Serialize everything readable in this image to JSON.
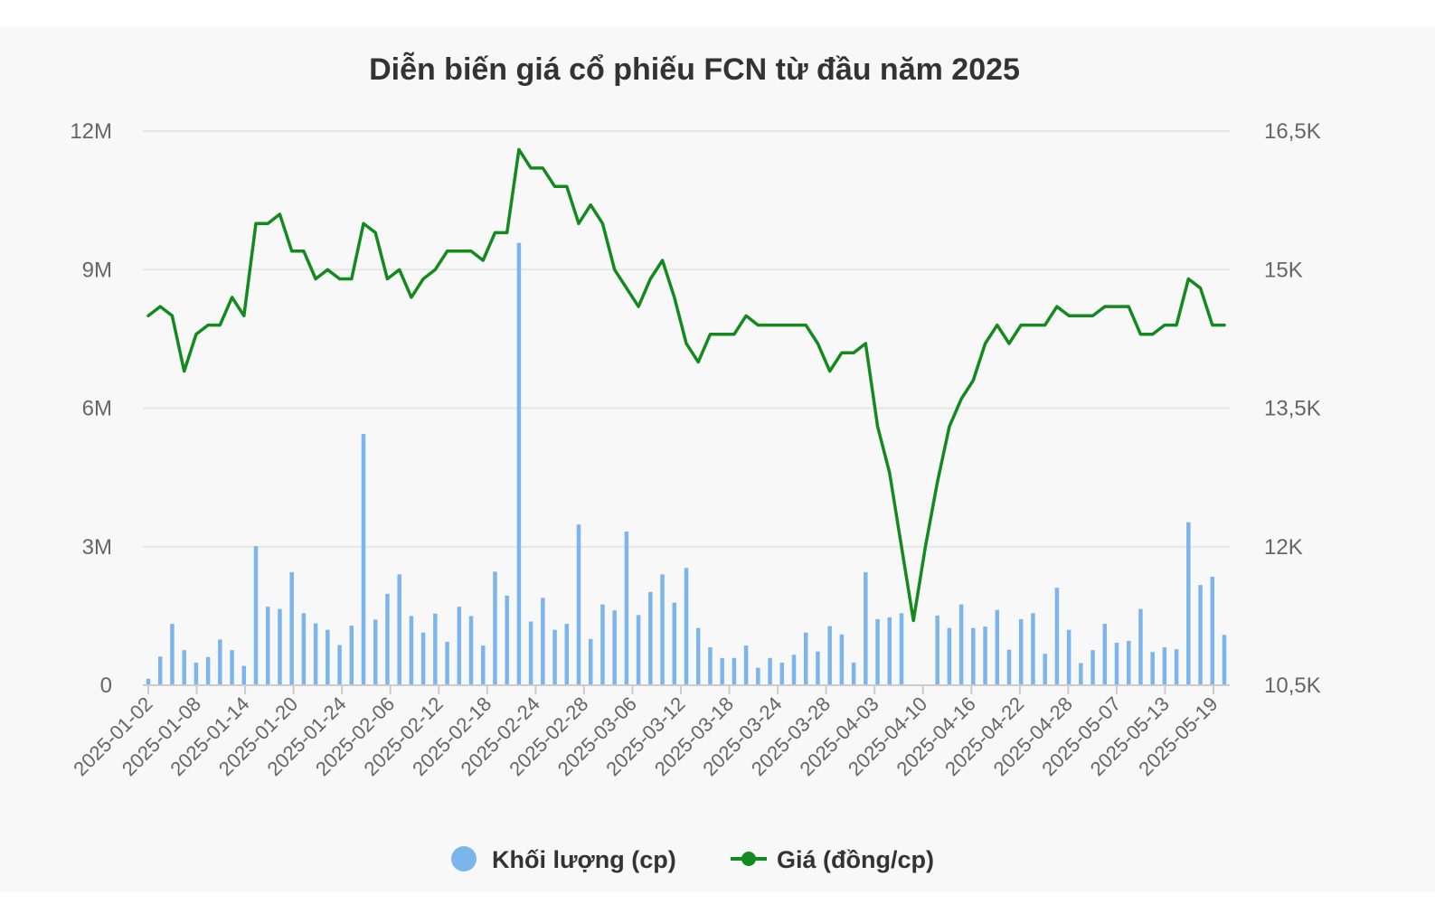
{
  "chart_data": {
    "type": "bar+line",
    "title": "Diễn biến giá cổ phiếu FCN từ đầu năm 2025",
    "left_axis": {
      "ticks": [
        "0",
        "3M",
        "6M",
        "9M",
        "12M"
      ],
      "range": [
        0,
        12000000
      ]
    },
    "right_axis": {
      "ticks": [
        "10,5K",
        "12K",
        "13,5K",
        "15K",
        "16,5K"
      ],
      "range": [
        10500,
        16500
      ]
    },
    "x_tick_labels": [
      "2025-01-02",
      "2025-01-08",
      "2025-01-14",
      "2025-01-20",
      "2025-01-24",
      "2025-02-06",
      "2025-02-12",
      "2025-02-18",
      "2025-02-24",
      "2025-02-28",
      "2025-03-06",
      "2025-03-12",
      "2025-03-18",
      "2025-03-24",
      "2025-03-28",
      "2025-04-03",
      "2025-04-10",
      "2025-04-16",
      "2025-04-22",
      "2025-04-28",
      "2025-05-07",
      "2025-05-13",
      "2025-05-19"
    ],
    "grid": "horizontal",
    "legend_position": "bottom",
    "colors": {
      "volume": "#7cb5ec",
      "price": "#138a1e",
      "grid": "#e6e6e6"
    },
    "series": [
      {
        "name": "Khối lượng (cp)",
        "kind": "bar",
        "axis": "left",
        "values": [
          140000,
          620000,
          1330000,
          760000,
          490000,
          610000,
          990000,
          760000,
          420000,
          3010000,
          1700000,
          1650000,
          2450000,
          1560000,
          1340000,
          1200000,
          870000,
          1290000,
          5440000,
          1420000,
          1980000,
          2400000,
          1500000,
          1140000,
          1550000,
          940000,
          1700000,
          1500000,
          860000,
          2460000,
          1940000,
          9580000,
          1380000,
          1890000,
          1200000,
          1330000,
          3480000,
          1000000,
          1750000,
          1620000,
          3330000,
          1520000,
          2020000,
          2400000,
          1790000,
          2540000,
          1240000,
          820000,
          590000,
          590000,
          860000,
          380000,
          590000,
          490000,
          660000,
          1140000,
          730000,
          1280000,
          1100000,
          490000,
          2450000,
          1430000,
          1470000,
          1560000,
          0,
          0,
          1510000,
          1240000,
          1750000,
          1240000,
          1270000,
          1630000,
          770000,
          1430000,
          1560000,
          680000,
          2110000,
          1200000,
          480000,
          760000,
          1330000,
          920000,
          960000,
          1650000,
          720000,
          820000,
          780000,
          3530000,
          2170000,
          2350000,
          1090000
        ]
      },
      {
        "name": "Giá (đồng/cp)",
        "kind": "line",
        "axis": "right",
        "values": [
          14500,
          14600,
          14500,
          13900,
          14300,
          14400,
          14400,
          14700,
          14500,
          15500,
          15500,
          15600,
          15200,
          15200,
          14900,
          15000,
          14900,
          14900,
          15500,
          15400,
          14900,
          15000,
          14700,
          14900,
          15000,
          15200,
          15200,
          15200,
          15100,
          15400,
          15400,
          16300,
          16100,
          16100,
          15900,
          15900,
          15500,
          15700,
          15500,
          15000,
          14800,
          14600,
          14900,
          15100,
          14700,
          14200,
          14000,
          14300,
          14300,
          14300,
          14500,
          14400,
          14400,
          14400,
          14400,
          14400,
          14200,
          13900,
          14100,
          14100,
          14200,
          13300,
          12800,
          12000,
          11200,
          12000,
          12700,
          13300,
          13600,
          13800,
          14200,
          14400,
          14200,
          14400,
          14400,
          14400,
          14600,
          14500,
          14500,
          14500,
          14600,
          14600,
          14600,
          14300,
          14300,
          14400,
          14400,
          14900,
          14800,
          14400,
          14400
        ]
      }
    ]
  },
  "legend": {
    "volume_label": "Khối lượng (cp)",
    "price_label": "Giá (đồng/cp)"
  }
}
